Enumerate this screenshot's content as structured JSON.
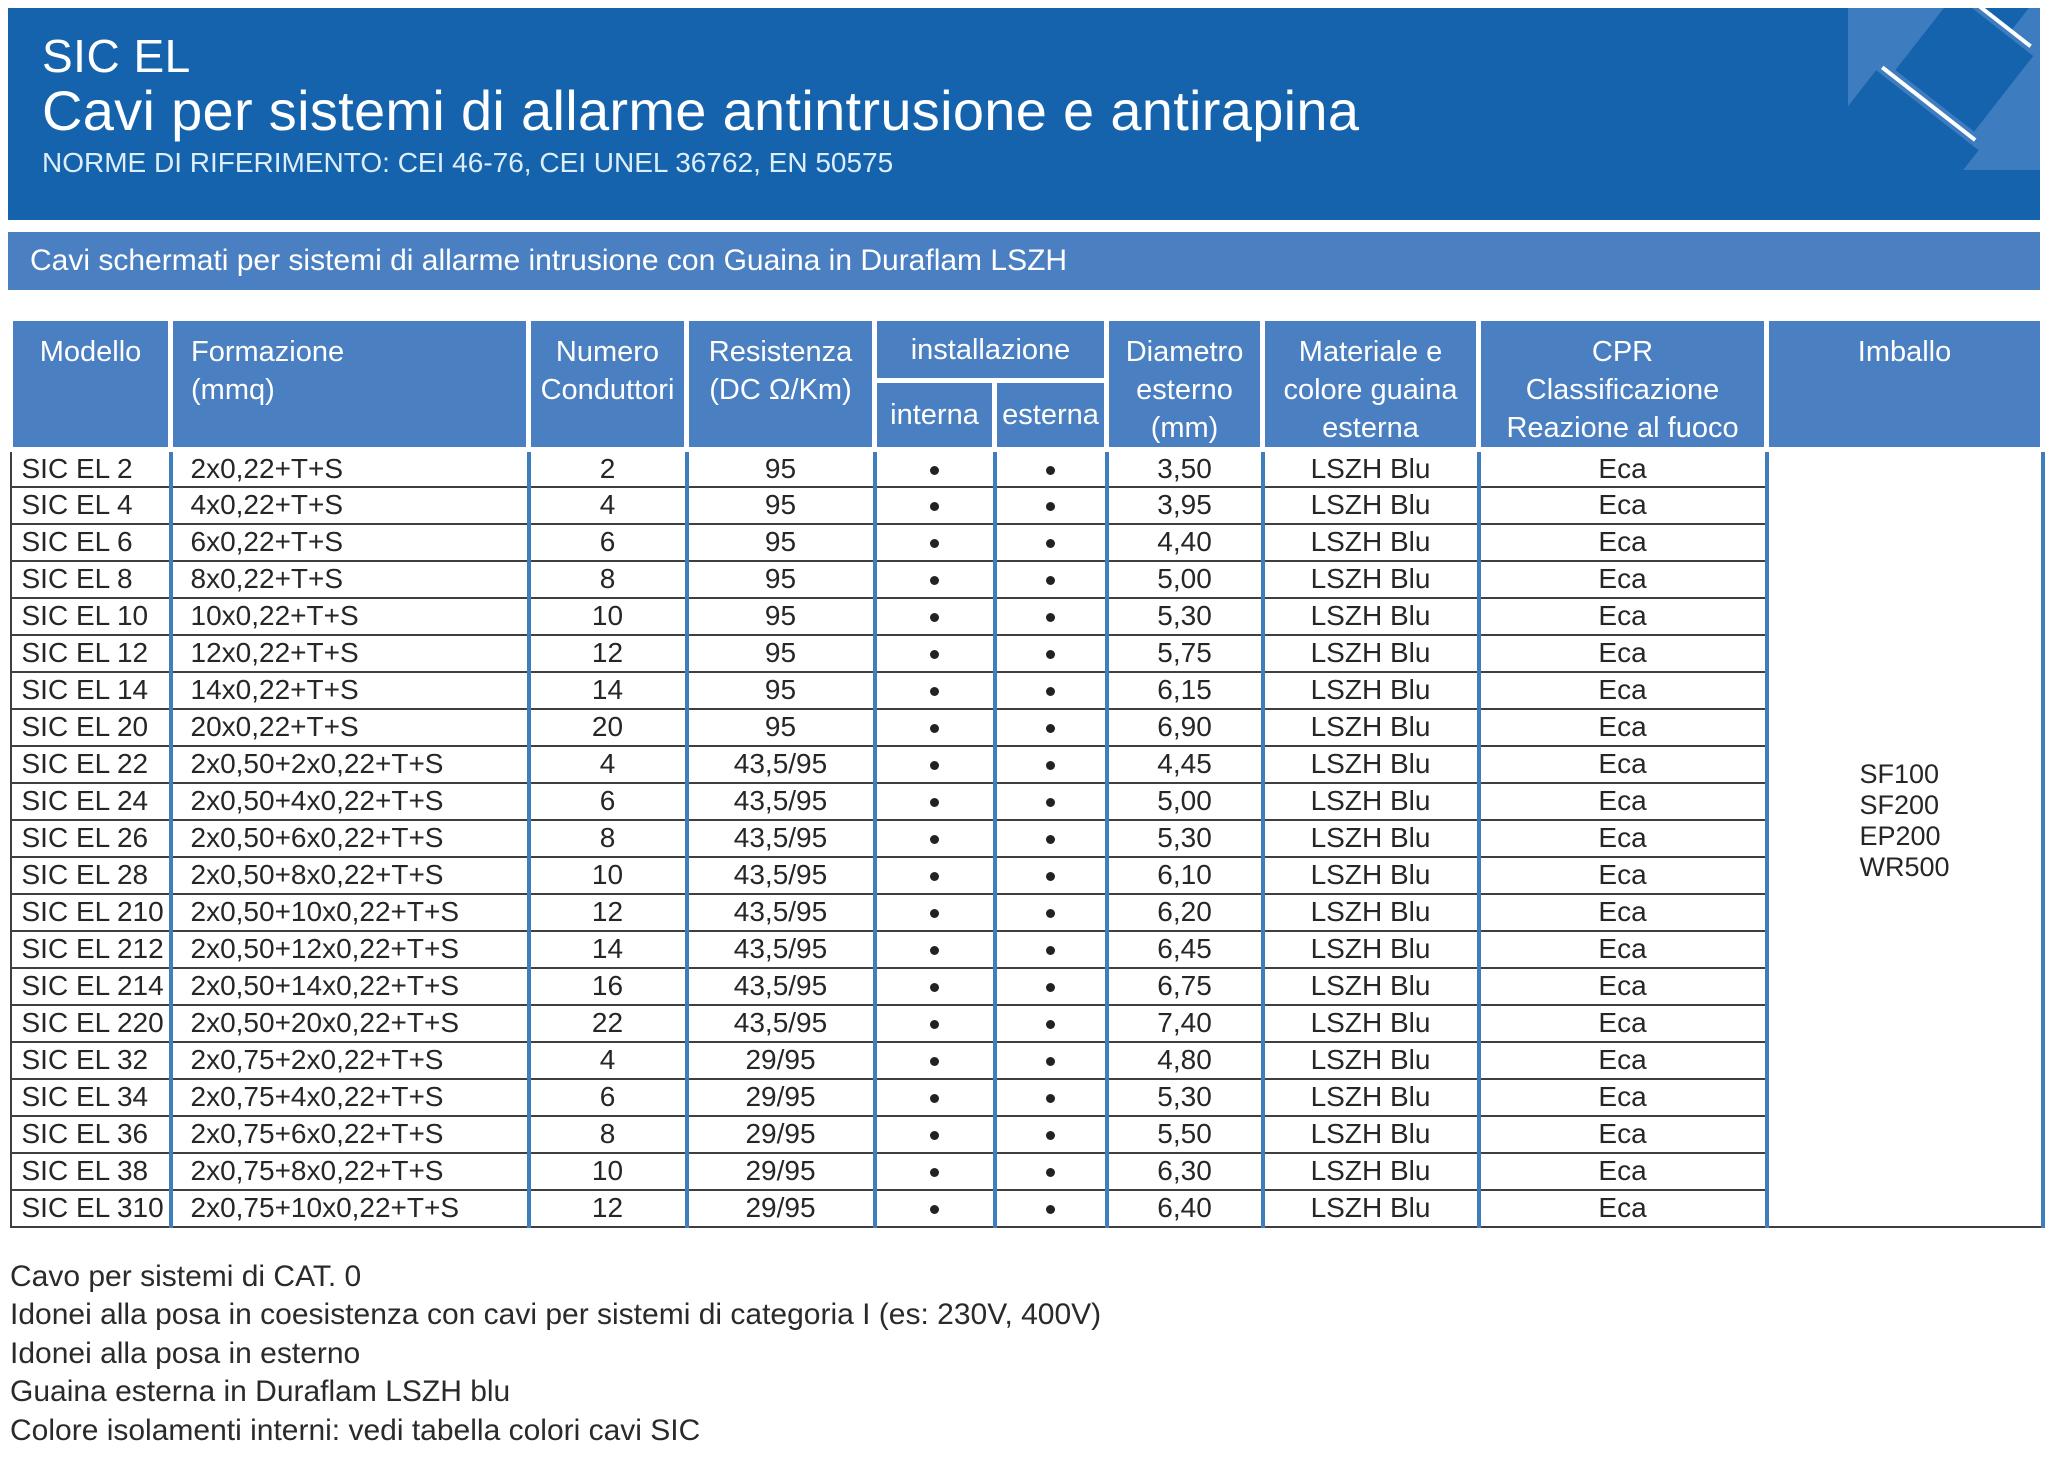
{
  "colors": {
    "header_blue": "#1463ac",
    "band_blue": "#4a7fc1",
    "grid_blue": "#3d7ebd",
    "grid_dark": "#3f3f3f"
  },
  "header": {
    "brand": "SIC EL",
    "title": "Cavi per sistemi di allarme antintrusione e antirapina",
    "norms": "NORME DI RIFERIMENTO: CEI 46-76, CEI UNEL 36762, EN 50575"
  },
  "banner": {
    "text": "Cavi schermati per sistemi di allarme intrusione con Guaina in Duraflam LSZH"
  },
  "table": {
    "headers": {
      "modello": "Modello",
      "formazione": "Formazione\n(mmq)",
      "numero": "Numero\nConduttori",
      "resistenza": "Resistenza\n(DC Ω/Km)",
      "installazione": "installazione",
      "interna": "interna",
      "esterna": "esterna",
      "diametro": "Diametro\nesterno\n(mm)",
      "materiale": "Materiale e\ncolore guaina\nesterna",
      "cpr": "CPR\nClassificazione\nReazione al fuoco",
      "imballo": "Imballo"
    },
    "rows": [
      {
        "model": "SIC EL 2",
        "formation": "2x0,22+T+S",
        "conductors": "2",
        "resistance": "95",
        "interna": true,
        "esterna": true,
        "diameter": "3,50",
        "sheath": "LSZH Blu",
        "cpr": "Eca"
      },
      {
        "model": "SIC EL 4",
        "formation": "4x0,22+T+S",
        "conductors": "4",
        "resistance": "95",
        "interna": true,
        "esterna": true,
        "diameter": "3,95",
        "sheath": "LSZH Blu",
        "cpr": "Eca"
      },
      {
        "model": "SIC EL 6",
        "formation": "6x0,22+T+S",
        "conductors": "6",
        "resistance": "95",
        "interna": true,
        "esterna": true,
        "diameter": "4,40",
        "sheath": "LSZH Blu",
        "cpr": "Eca"
      },
      {
        "model": "SIC EL 8",
        "formation": "8x0,22+T+S",
        "conductors": "8",
        "resistance": "95",
        "interna": true,
        "esterna": true,
        "diameter": "5,00",
        "sheath": "LSZH Blu",
        "cpr": "Eca"
      },
      {
        "model": "SIC EL 10",
        "formation": "10x0,22+T+S",
        "conductors": "10",
        "resistance": "95",
        "interna": true,
        "esterna": true,
        "diameter": "5,30",
        "sheath": "LSZH Blu",
        "cpr": "Eca"
      },
      {
        "model": "SIC EL 12",
        "formation": "12x0,22+T+S",
        "conductors": "12",
        "resistance": "95",
        "interna": true,
        "esterna": true,
        "diameter": "5,75",
        "sheath": "LSZH Blu",
        "cpr": "Eca"
      },
      {
        "model": "SIC EL 14",
        "formation": "14x0,22+T+S",
        "conductors": "14",
        "resistance": "95",
        "interna": true,
        "esterna": true,
        "diameter": "6,15",
        "sheath": "LSZH Blu",
        "cpr": "Eca"
      },
      {
        "model": "SIC EL 20",
        "formation": "20x0,22+T+S",
        "conductors": "20",
        "resistance": "95",
        "interna": true,
        "esterna": true,
        "diameter": "6,90",
        "sheath": "LSZH Blu",
        "cpr": "Eca"
      },
      {
        "model": "SIC EL 22",
        "formation": "2x0,50+2x0,22+T+S",
        "conductors": "4",
        "resistance": "43,5/95",
        "interna": true,
        "esterna": true,
        "diameter": "4,45",
        "sheath": "LSZH Blu",
        "cpr": "Eca"
      },
      {
        "model": "SIC EL 24",
        "formation": "2x0,50+4x0,22+T+S",
        "conductors": "6",
        "resistance": "43,5/95",
        "interna": true,
        "esterna": true,
        "diameter": "5,00",
        "sheath": "LSZH Blu",
        "cpr": "Eca"
      },
      {
        "model": "SIC EL 26",
        "formation": "2x0,50+6x0,22+T+S",
        "conductors": "8",
        "resistance": "43,5/95",
        "interna": true,
        "esterna": true,
        "diameter": "5,30",
        "sheath": "LSZH Blu",
        "cpr": "Eca"
      },
      {
        "model": "SIC EL 28",
        "formation": "2x0,50+8x0,22+T+S",
        "conductors": "10",
        "resistance": "43,5/95",
        "interna": true,
        "esterna": true,
        "diameter": "6,10",
        "sheath": "LSZH Blu",
        "cpr": "Eca"
      },
      {
        "model": "SIC EL 210",
        "formation": "2x0,50+10x0,22+T+S",
        "conductors": "12",
        "resistance": "43,5/95",
        "interna": true,
        "esterna": true,
        "diameter": "6,20",
        "sheath": "LSZH Blu",
        "cpr": "Eca"
      },
      {
        "model": "SIC EL 212",
        "formation": "2x0,50+12x0,22+T+S",
        "conductors": "14",
        "resistance": "43,5/95",
        "interna": true,
        "esterna": true,
        "diameter": "6,45",
        "sheath": "LSZH Blu",
        "cpr": "Eca"
      },
      {
        "model": "SIC EL 214",
        "formation": "2x0,50+14x0,22+T+S",
        "conductors": "16",
        "resistance": "43,5/95",
        "interna": true,
        "esterna": true,
        "diameter": "6,75",
        "sheath": "LSZH Blu",
        "cpr": "Eca"
      },
      {
        "model": "SIC EL 220",
        "formation": "2x0,50+20x0,22+T+S",
        "conductors": "22",
        "resistance": "43,5/95",
        "interna": true,
        "esterna": true,
        "diameter": "7,40",
        "sheath": "LSZH Blu",
        "cpr": "Eca"
      },
      {
        "model": "SIC EL 32",
        "formation": "2x0,75+2x0,22+T+S",
        "conductors": "4",
        "resistance": "29/95",
        "interna": true,
        "esterna": true,
        "diameter": "4,80",
        "sheath": "LSZH Blu",
        "cpr": "Eca"
      },
      {
        "model": "SIC EL 34",
        "formation": "2x0,75+4x0,22+T+S",
        "conductors": "6",
        "resistance": "29/95",
        "interna": true,
        "esterna": true,
        "diameter": "5,30",
        "sheath": "LSZH Blu",
        "cpr": "Eca"
      },
      {
        "model": "SIC EL 36",
        "formation": "2x0,75+6x0,22+T+S",
        "conductors": "8",
        "resistance": "29/95",
        "interna": true,
        "esterna": true,
        "diameter": "5,50",
        "sheath": "LSZH Blu",
        "cpr": "Eca"
      },
      {
        "model": "SIC EL 38",
        "formation": "2x0,75+8x0,22+T+S",
        "conductors": "10",
        "resistance": "29/95",
        "interna": true,
        "esterna": true,
        "diameter": "6,30",
        "sheath": "LSZH Blu",
        "cpr": "Eca"
      },
      {
        "model": "SIC EL 310",
        "formation": "2x0,75+10x0,22+T+S",
        "conductors": "12",
        "resistance": "29/95",
        "interna": true,
        "esterna": true,
        "diameter": "6,40",
        "sheath": "LSZH Blu",
        "cpr": "Eca"
      }
    ],
    "packaging": [
      "SF100",
      "SF200",
      "EP200",
      "WR500"
    ]
  },
  "footer": {
    "notes": [
      "Cavo per sistemi di CAT. 0",
      "Idonei alla posa in coesistenza con cavi per sistemi di categoria I (es: 230V, 400V)",
      "Idonei alla posa in esterno",
      "Guaina esterna in Duraflam LSZH blu",
      "Colore isolamenti interni: vedi tabella colori cavi SIC"
    ]
  }
}
